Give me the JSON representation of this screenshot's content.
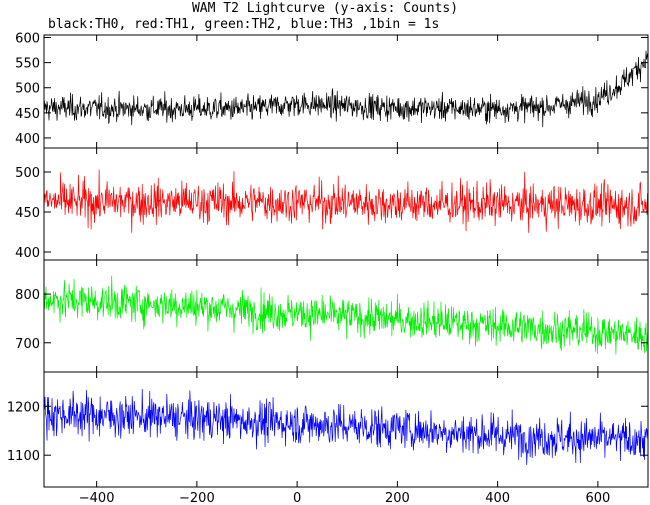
{
  "chart_data": {
    "type": "line",
    "title": "WAM T2 Lightcurve (y-axis: Counts)",
    "subtitle": "black:TH0, red:TH1, green:TH2, blue:TH3 ,1bin = 1s",
    "xlabel": "",
    "ylabel": "",
    "xlim": [
      -505,
      700
    ],
    "x_ticks": [
      -400,
      -200,
      0,
      200,
      400,
      600
    ],
    "x_tick_labels": [
      "−400",
      "−200",
      "0",
      "200",
      "400",
      "600"
    ],
    "grid": false,
    "panels": [
      {
        "name": "TH0",
        "color": "#000000",
        "ylim": [
          380,
          605
        ],
        "y_ticks": [
          400,
          450,
          500,
          550,
          600
        ],
        "trend": {
          "x": [
            -505,
            -300,
            -100,
            0,
            200,
            400,
            500,
            600,
            650,
            700
          ],
          "y": [
            460,
            458,
            458,
            468,
            460,
            458,
            462,
            478,
            510,
            560
          ]
        },
        "noise_amplitude": 60
      },
      {
        "name": "TH1",
        "color": "#ff0000",
        "ylim": [
          390,
          530
        ],
        "y_ticks": [
          400,
          450,
          500
        ],
        "trend": {
          "x": [
            -505,
            0,
            300,
            700
          ],
          "y": [
            463,
            462,
            460,
            458
          ]
        },
        "noise_amplitude": 60
      },
      {
        "name": "TH2",
        "color": "#00ee00",
        "ylim": [
          640,
          870
        ],
        "y_ticks": [
          700,
          800
        ],
        "trend": {
          "x": [
            -505,
            -200,
            0,
            200,
            400,
            700
          ],
          "y": [
            790,
            775,
            760,
            748,
            735,
            715
          ]
        },
        "noise_amplitude": 90
      },
      {
        "name": "TH3",
        "color": "#0000ff",
        "ylim": [
          1035,
          1270
        ],
        "y_ticks": [
          1100,
          1200
        ],
        "trend": {
          "x": [
            -505,
            -200,
            0,
            200,
            400,
            700
          ],
          "y": [
            1185,
            1175,
            1165,
            1155,
            1140,
            1130
          ]
        },
        "noise_amplitude": 100
      }
    ]
  }
}
